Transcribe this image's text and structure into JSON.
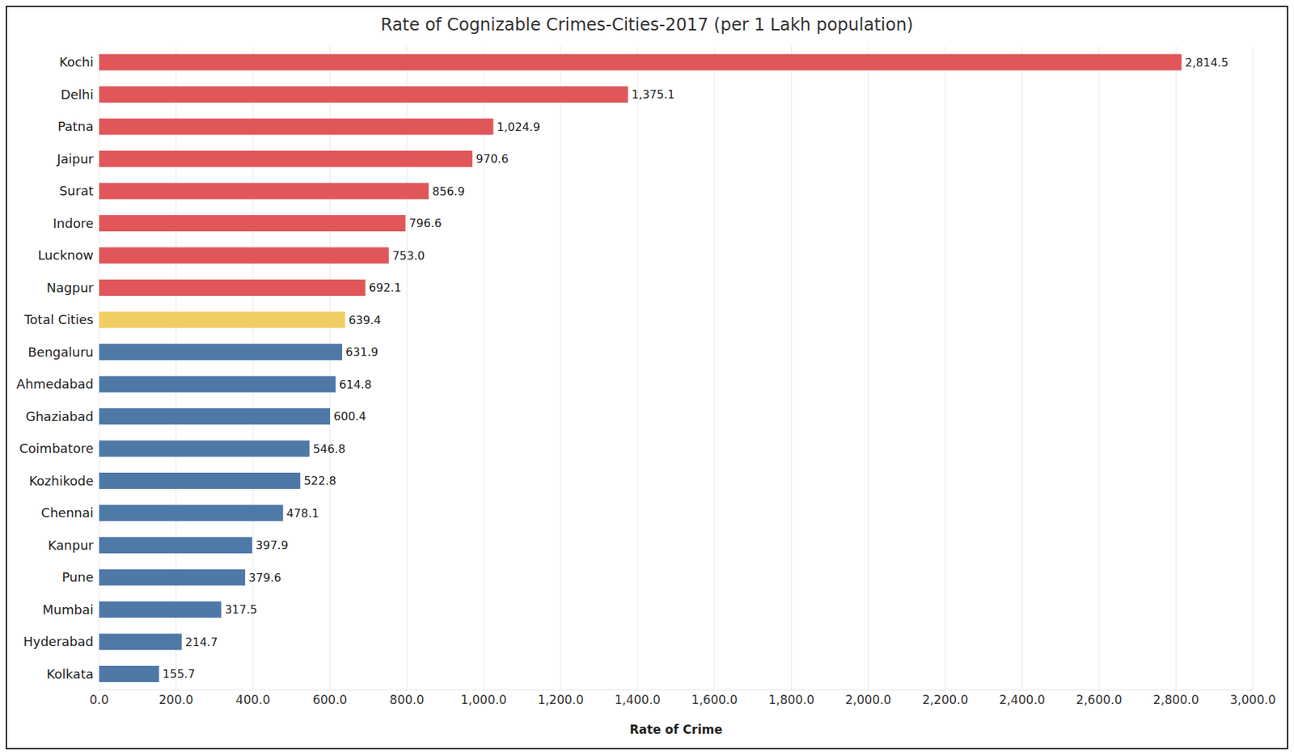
{
  "chart_data": {
    "type": "bar",
    "title": "Rate of Cognizable Crimes-Cities-2017 (per 1 Lakh population)",
    "x_label": "Rate of Crime",
    "orientation": "horizontal",
    "categories": [
      "Kochi",
      "Delhi",
      "Patna",
      "Jaipur",
      "Surat",
      "Indore",
      "Lucknow",
      "Nagpur",
      "Total Cities",
      "Bengaluru",
      "Ahmedabad",
      "Ghaziabad",
      "Coimbatore",
      "Kozhikode",
      "Chennai",
      "Kanpur",
      "Pune",
      "Mumbai",
      "Hyderabad",
      "Kolkata"
    ],
    "values": [
      2814.5,
      1375.1,
      1024.9,
      970.6,
      856.9,
      796.6,
      753.0,
      692.1,
      639.4,
      631.9,
      614.8,
      600.4,
      546.8,
      522.8,
      478.1,
      397.9,
      379.6,
      317.5,
      214.7,
      155.7
    ],
    "value_labels": [
      "2,814.5",
      "1,375.1",
      "1,024.9",
      "970.6",
      "856.9",
      "796.6",
      "753.0",
      "692.1",
      "639.4",
      "631.9",
      "614.8",
      "600.4",
      "546.8",
      "522.8",
      "478.1",
      "397.9",
      "379.6",
      "317.5",
      "214.7",
      "155.7"
    ],
    "colors": [
      "#e15759",
      "#e15759",
      "#e15759",
      "#e15759",
      "#e15759",
      "#e15759",
      "#e15759",
      "#e15759",
      "#f1ce63",
      "#4e79a7",
      "#4e79a7",
      "#4e79a7",
      "#4e79a7",
      "#4e79a7",
      "#4e79a7",
      "#4e79a7",
      "#4e79a7",
      "#4e79a7",
      "#4e79a7",
      "#4e79a7"
    ],
    "xlim": [
      0,
      3000
    ],
    "xticks": [
      {
        "value": 0,
        "label": "0.0"
      },
      {
        "value": 200,
        "label": "200.0"
      },
      {
        "value": 400,
        "label": "400.0"
      },
      {
        "value": 600,
        "label": "600.0"
      },
      {
        "value": 800,
        "label": "800.0"
      },
      {
        "value": 1000,
        "label": "1,000.0"
      },
      {
        "value": 1200,
        "label": "1,200.0"
      },
      {
        "value": 1400,
        "label": "1,400.0"
      },
      {
        "value": 1600,
        "label": "1,600.0"
      },
      {
        "value": 1800,
        "label": "1,800.0"
      },
      {
        "value": 2000,
        "label": "2,000.0"
      },
      {
        "value": 2200,
        "label": "2,200.0"
      },
      {
        "value": 2400,
        "label": "2,400.0"
      },
      {
        "value": 2600,
        "label": "2,600.0"
      },
      {
        "value": 2800,
        "label": "2,800.0"
      },
      {
        "value": 3000,
        "label": "3,000.0"
      }
    ],
    "grid": true,
    "data_labels": true
  }
}
